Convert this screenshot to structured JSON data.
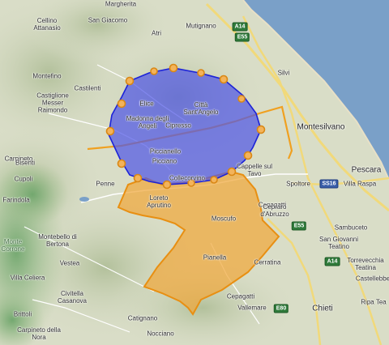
{
  "colors": {
    "land": "#d9ddc7",
    "hills": "#b7c3a2",
    "forest": "#7fae7b",
    "sea": "#7aa0c8",
    "road_major": "#f1d97a",
    "road_minor": "#ffffff",
    "blue_fill": "#5058e6",
    "blue_stroke": "#1c23d8",
    "orange_fill": "#f0a83b",
    "orange_stroke": "#e88f12",
    "vertex_fill": "#f3b35a"
  },
  "labels": {
    "margherita": "Margherita",
    "sangiacomo": "San Giacomo",
    "cellino": "Cellino Attanasio",
    "atri": "Atri",
    "mutignano": "Mutignano",
    "silvi": "Silvi",
    "montefino": "Montefino",
    "castilenti": "Castilenti",
    "castiglione": "Castiglione Messer Raimondo",
    "elice": "Elice",
    "madonna": "Madonna degli Angeli",
    "cittasa": "Città Sant'Angelo",
    "cipresso": "Cipresso",
    "montesilvano": "Montesilvano",
    "picciano1": "Piccianello",
    "picciano2": "Picciano",
    "carpineto": "Carpineto",
    "bisenti": "Bisenti",
    "cupoli": "Cupoli",
    "penne": "Penne",
    "collecorvino": "Collecorvino",
    "cappelle": "Cappelle sul Tavo",
    "spoltore": "Spoltore",
    "pescara": "Pescara",
    "villaraspa": "Villa Raspa",
    "farindola": "Farindola",
    "loreto": "Loreto Aprutino",
    "moscufo": "Moscufo",
    "cepagatti_top": "Cepagatti",
    "cepraradabr": "Cepraro d'Abruzzo",
    "sambuceto": "Sambuceto",
    "sangiovanni": "San Giovanni Teatino",
    "torrevecchia": "Torrevecchia Teatina",
    "castellebbe": "Castellebbe",
    "montebello": "Montebello di Bertona",
    "vestea": "Vestea",
    "pianella": "Pianella",
    "cerratina": "Cerratina",
    "villaceliera": "Villa Celiera",
    "civitella": "Civitella Casanova",
    "cepagatti": "Cepagatti",
    "vallemare": "Vallemare",
    "chieti": "Chieti",
    "riptea": "Ripa Tea",
    "brittoli": "Brittoli",
    "catignano": "Catignano",
    "carpineto2": "Carpineto della Nora",
    "nocciano": "Nocciano",
    "montecorrone": "Monte Corrone"
  },
  "roads": {
    "a14a": "A14",
    "a14b": "A14",
    "e55a": "E55",
    "e55b": "E55",
    "e80": "E80",
    "ss16": "SS16"
  }
}
